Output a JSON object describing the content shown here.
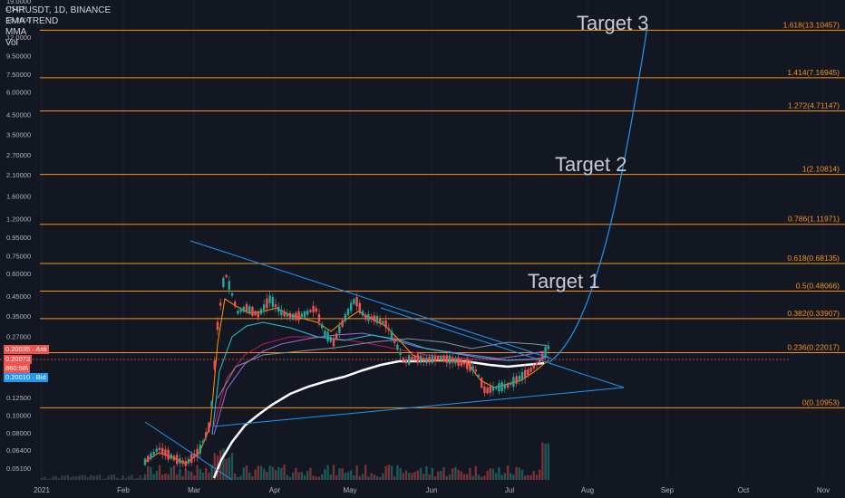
{
  "header": {
    "symbol": "CHRUSDT, 1D, BINANCE",
    "indicators": [
      "EMA TREND",
      "MMA",
      "Vol"
    ]
  },
  "price_axis": {
    "unit": "USDT",
    "ticks": [
      "19.0000",
      "15.0000",
      "12.0000",
      "9.50000",
      "7.50000",
      "6.00000",
      "4.50000",
      "3.50000",
      "2.70000",
      "2.10000",
      "1.60000",
      "1.20000",
      "0.95000",
      "0.75000",
      "0.60000",
      "0.45000",
      "0.35000",
      "0.27000",
      "0.20000",
      "0.16000",
      "0.12500",
      "0.10000",
      "0.08000",
      "0.06400",
      "0.05100"
    ]
  },
  "time_axis": {
    "ticks": [
      "2021",
      "Feb",
      "Mar",
      "Apr",
      "May",
      "Jun",
      "Jul",
      "Aug",
      "Sep",
      "Oct",
      "Nov"
    ]
  },
  "price_labels": {
    "ask": "0.20035 · Ask",
    "last": "0.20073",
    "countdown": "860:58\\",
    "bid": "0.20010 · Bid"
  },
  "fib_levels": [
    {
      "ratio": "1.618",
      "label": "1.618(13.10457)",
      "value": 13.10457
    },
    {
      "ratio": "1.414",
      "label": "1.414(7.16945)",
      "value": 7.16945
    },
    {
      "ratio": "1.272",
      "label": "1.272(4.71147)",
      "value": 4.71147
    },
    {
      "ratio": "1",
      "label": "1(2.10814)",
      "value": 2.10814
    },
    {
      "ratio": "0.786",
      "label": "0.786(1.11971)",
      "value": 1.11971
    },
    {
      "ratio": "0.618",
      "label": "0.618(0.68135)",
      "value": 0.68135
    },
    {
      "ratio": "0.5",
      "label": "0.5(0.48066)",
      "value": 0.48066
    },
    {
      "ratio": "0.382",
      "label": "0.382(0.33907)",
      "value": 0.33907
    },
    {
      "ratio": "0.236",
      "label": "0.236(0.22017)",
      "value": 0.22017
    },
    {
      "ratio": "0",
      "label": "0(0.10953)",
      "value": 0.10953
    }
  ],
  "annotations": {
    "target1": "Target 1",
    "target2": "Target 2",
    "target3": "Target 3"
  },
  "colors": {
    "background": "#131722",
    "fib": "#f7931a",
    "trendline": "#2196f3",
    "up": "#26a69a",
    "down": "#ef5350",
    "ema200": "#ffffff",
    "ask": "#ef5350",
    "bid": "#2196f3"
  }
}
